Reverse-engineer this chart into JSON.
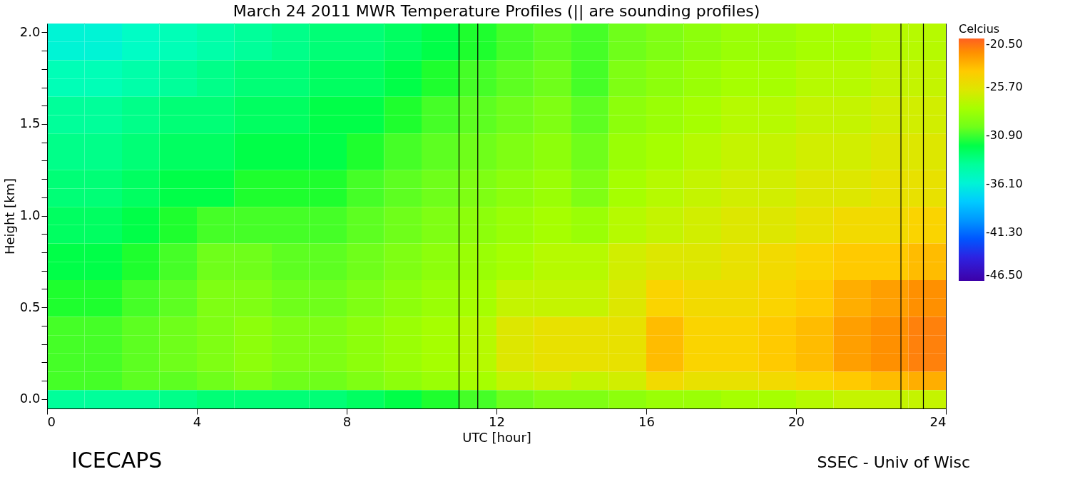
{
  "chart_data": {
    "type": "heatmap",
    "title": "March 24 2011 MWR Temperature Profiles (|| are sounding profiles)",
    "xlabel": "UTC [hour]",
    "ylabel": "Height [km]",
    "legend_title": "Celcius",
    "x": [
      0.5,
      1.5,
      2.5,
      3.5,
      4.5,
      5.5,
      6.5,
      7.5,
      8.5,
      9.5,
      10.5,
      11.5,
      12.5,
      13.5,
      14.5,
      15.5,
      16.5,
      17.5,
      18.5,
      19.5,
      20.5,
      21.5,
      22.5,
      23.5
    ],
    "y_categories": [
      "2.0",
      null,
      null,
      null,
      null,
      "1.5",
      null,
      null,
      null,
      null,
      "1.0",
      null,
      null,
      null,
      null,
      "0.5",
      null,
      null,
      null,
      null,
      "0.0"
    ],
    "cells": [
      [
        -36,
        -36,
        -35.5,
        -35,
        -34.5,
        -34,
        -33.5,
        -33,
        -33,
        -32.5,
        -32,
        -31.5,
        -31,
        -30.5,
        -31,
        -30,
        -29.5,
        -29,
        -28.5,
        -28.5,
        -28,
        -28,
        -27.5,
        -27.5
      ],
      [
        -36,
        -36,
        -35.5,
        -35,
        -34.5,
        -34,
        -33.5,
        -33,
        -33,
        -32.5,
        -32,
        -31.5,
        -31,
        -30.5,
        -31,
        -30,
        -29.5,
        -29,
        -28.5,
        -28.5,
        -28,
        -28,
        -27.5,
        -27.5
      ],
      [
        -35,
        -35,
        -34.5,
        -34,
        -33.5,
        -33,
        -33,
        -32.5,
        -32.5,
        -32,
        -31.5,
        -31,
        -30.5,
        -30,
        -31,
        -29.5,
        -29,
        -28.5,
        -28,
        -28,
        -27.5,
        -27.5,
        -27,
        -27
      ],
      [
        -35,
        -35,
        -34.5,
        -34,
        -33.5,
        -33,
        -33,
        -32.5,
        -32.5,
        -32,
        -31.5,
        -31,
        -30.5,
        -30,
        -31,
        -29.5,
        -29,
        -28.5,
        -28,
        -28,
        -27.5,
        -27.5,
        -27,
        -27
      ],
      [
        -34,
        -34,
        -33.5,
        -33,
        -33,
        -32.5,
        -32.5,
        -32,
        -32,
        -31.5,
        -31,
        -30.5,
        -30,
        -29.5,
        -30.5,
        -29,
        -28.5,
        -28,
        -27.5,
        -27.5,
        -27,
        -27,
        -26.5,
        -26.5
      ],
      [
        -34,
        -34,
        -33.5,
        -33,
        -33,
        -32.5,
        -32.5,
        -32,
        -32,
        -31.5,
        -31,
        -30.5,
        -30,
        -29.5,
        -30.5,
        -29,
        -28.5,
        -28,
        -27.5,
        -27.5,
        -27,
        -27,
        -26.5,
        -26.5
      ],
      [
        -33.5,
        -33.5,
        -33,
        -32.5,
        -32.5,
        -32,
        -32,
        -32,
        -31.5,
        -31,
        -30.5,
        -30,
        -29.5,
        -29,
        -30,
        -28.5,
        -28,
        -27.5,
        -27,
        -27,
        -26.5,
        -26.5,
        -26,
        -26
      ],
      [
        -33.5,
        -33.5,
        -33,
        -32.5,
        -32.5,
        -32,
        -32,
        -32,
        -31.5,
        -31,
        -30.5,
        -30,
        -29.5,
        -29,
        -30,
        -28.5,
        -28,
        -27.5,
        -27,
        -27,
        -26.5,
        -26.5,
        -26,
        -26
      ],
      [
        -33,
        -33,
        -32.5,
        -32,
        -32,
        -31.5,
        -31.5,
        -31.5,
        -31,
        -30.5,
        -30,
        -29.5,
        -29,
        -28.5,
        -29.5,
        -28,
        -27.5,
        -27,
        -26.5,
        -26.5,
        -26,
        -26,
        -25.5,
        -25.5
      ],
      [
        -33,
        -33,
        -32.5,
        -32,
        -32,
        -31.5,
        -31.5,
        -31.5,
        -31,
        -30.5,
        -30,
        -29.5,
        -29,
        -28.5,
        -29.5,
        -28,
        -27.5,
        -27,
        -26.5,
        -26.5,
        -26,
        -26,
        -25.5,
        -25.5
      ],
      [
        -32.5,
        -32.5,
        -32,
        -31.5,
        -31,
        -31,
        -31,
        -31,
        -30.5,
        -30,
        -29.5,
        -29,
        -28.5,
        -28,
        -28.5,
        -27.5,
        -27,
        -26.5,
        -26,
        -26,
        -25.5,
        -25,
        -25,
        -24.5
      ],
      [
        -32.5,
        -32.5,
        -32,
        -31.5,
        -31,
        -31,
        -31,
        -31,
        -30.5,
        -30,
        -29.5,
        -29,
        -28.5,
        -28,
        -28.5,
        -27.5,
        -27,
        -26.5,
        -26,
        -26,
        -25.5,
        -25,
        -25,
        -24.5
      ],
      [
        -32,
        -32,
        -31.5,
        -31,
        -30,
        -30,
        -30.5,
        -30.5,
        -30,
        -29.5,
        -29,
        -28.5,
        -28,
        -27.5,
        -27.5,
        -26.5,
        -26,
        -26,
        -25.5,
        -25,
        -24.5,
        -24,
        -24,
        -23.5
      ],
      [
        -32,
        -32,
        -31.5,
        -31,
        -30,
        -30,
        -30.5,
        -30.5,
        -30,
        -29.5,
        -29,
        -28.5,
        -28,
        -27.5,
        -27.5,
        -26.5,
        -26,
        -26,
        -25.5,
        -25,
        -24.5,
        -24,
        -24,
        -23.5
      ],
      [
        -31.5,
        -31.5,
        -31,
        -30.5,
        -29.5,
        -29.5,
        -30,
        -30,
        -29.5,
        -29,
        -28.5,
        -28,
        -27,
        -27,
        -27,
        -26,
        -24.5,
        -25,
        -25,
        -24.5,
        -24,
        -23,
        -22.5,
        -22
      ],
      [
        -31.5,
        -31.5,
        -31,
        -30.5,
        -29.5,
        -29.5,
        -30,
        -30,
        -29.5,
        -29,
        -28.5,
        -28,
        -27,
        -27,
        -27,
        -26,
        -24.5,
        -25,
        -25,
        -24.5,
        -24,
        -23,
        -22.5,
        -22
      ],
      [
        -31,
        -31,
        -30.5,
        -30,
        -29.5,
        -29,
        -29.5,
        -29.5,
        -29,
        -28.5,
        -28,
        -27.5,
        -26,
        -25.5,
        -25.5,
        -25.5,
        -23.5,
        -24.5,
        -24.5,
        -24,
        -23.5,
        -22.5,
        -22,
        -21.5
      ],
      [
        -31,
        -31,
        -30.5,
        -30,
        -29.5,
        -29,
        -29.5,
        -29.5,
        -29,
        -28.5,
        -28,
        -27.5,
        -26,
        -25.5,
        -25.5,
        -25.5,
        -23.5,
        -24.5,
        -24.5,
        -24,
        -23.5,
        -22.5,
        -22,
        -21.5
      ],
      [
        -31,
        -31,
        -30.5,
        -30,
        -29.5,
        -29,
        -29.5,
        -29.5,
        -29,
        -28.5,
        -28,
        -27.5,
        -26,
        -25.5,
        -25.5,
        -25.5,
        -23.5,
        -24.5,
        -24.5,
        -24,
        -23.5,
        -22.5,
        -22,
        -21.5
      ],
      [
        -31,
        -31,
        -30.5,
        -30.5,
        -30,
        -29.5,
        -30,
        -30,
        -29.5,
        -29,
        -28.5,
        -28,
        -27,
        -26.5,
        -27,
        -26.5,
        -25,
        -25.5,
        -25.5,
        -25,
        -24.5,
        -24,
        -23.5,
        -23
      ],
      [
        -34,
        -34,
        -34,
        -33.5,
        -33,
        -33,
        -33,
        -33,
        -32.5,
        -32,
        -31.5,
        -31,
        -30,
        -29.5,
        -29.5,
        -29,
        -28.5,
        -28.5,
        -28,
        -28,
        -27.5,
        -27,
        -27,
        -27
      ]
    ],
    "colors": [
      "#3c00a8",
      "#0030ff",
      "#00b0ff",
      "#00ffc0",
      "#00ff30",
      "#a8ff00",
      "#ffd000",
      "#ff6020"
    ],
    "clim": [
      -46.5,
      -20.5
    ],
    "cticks": [
      {
        "value": -46.5,
        "label": "-46.50"
      },
      {
        "value": -41.3,
        "label": "-41.30"
      },
      {
        "value": -36.1,
        "label": "-36.10"
      },
      {
        "value": -30.9,
        "label": "-30.90"
      },
      {
        "value": -25.7,
        "label": "-25.70"
      },
      {
        "value": -20.5,
        "label": "-20.50"
      }
    ],
    "xlim": [
      0,
      24
    ],
    "xticks": [
      0,
      4,
      8,
      12,
      16,
      20,
      24
    ],
    "ref_lines": [
      {
        "axis": "x",
        "value": 11.0
      },
      {
        "axis": "x",
        "value": 11.5
      },
      {
        "axis": "x",
        "value": 22.8
      },
      {
        "axis": "x",
        "value": 23.4
      }
    ],
    "grid": false,
    "annotations": [
      "ICECAPS",
      "SSEC - Univ of Wisc"
    ]
  }
}
